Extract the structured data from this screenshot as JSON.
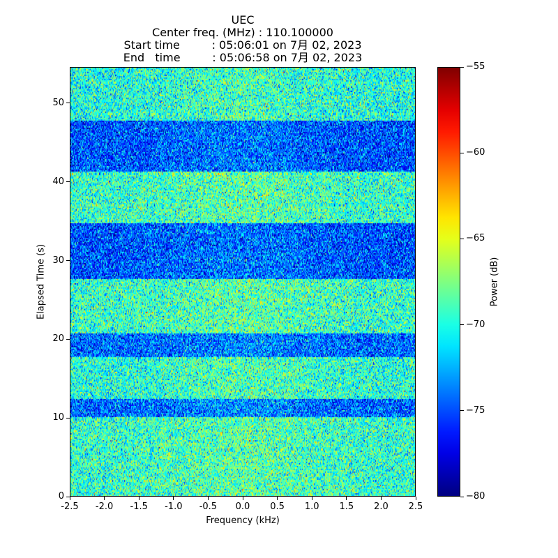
{
  "chart_data": {
    "type": "heatmap",
    "title_lines": [
      "UEC",
      "Center freq. (MHz) : 110.100000",
      "Start time         : 05:06:01 on 7月 02, 2023",
      "End   time         : 05:06:58 on 7月 02, 2023"
    ],
    "xlabel": "Frequency (kHz)",
    "ylabel": "Elapsed Time (s)",
    "xlim": [
      -2.5,
      2.5
    ],
    "ylim": [
      0,
      54.6
    ],
    "xticks": [
      -2.5,
      -2.0,
      -1.5,
      -1.0,
      -0.5,
      0.0,
      0.5,
      1.0,
      1.5,
      2.0,
      2.5
    ],
    "xtick_labels": [
      "-2.5",
      "-2.0",
      "-1.5",
      "-1.0",
      "-0.5",
      "0.0",
      "0.5",
      "1.0",
      "1.5",
      "2.0",
      "2.5"
    ],
    "yticks": [
      0,
      10,
      20,
      30,
      40,
      50
    ],
    "ytick_labels": [
      "0",
      "10",
      "20",
      "30",
      "40",
      "50"
    ],
    "colorbar": {
      "label": "Power (dB)",
      "range": [
        -80,
        -55
      ],
      "ticks": [
        -80,
        -75,
        -70,
        -65,
        -60,
        -55
      ],
      "tick_labels": [
        "−80",
        "−75",
        "−70",
        "−65",
        "−60",
        "−55"
      ],
      "colormap": "jet"
    },
    "time_bands": [
      {
        "t_start": 0.0,
        "t_end": 10.0,
        "mean_db": -69.5
      },
      {
        "t_start": 10.0,
        "t_end": 12.4,
        "mean_db": -74.5
      },
      {
        "t_start": 12.4,
        "t_end": 17.6,
        "mean_db": -69.8
      },
      {
        "t_start": 17.6,
        "t_end": 20.7,
        "mean_db": -74.5
      },
      {
        "t_start": 20.7,
        "t_end": 27.6,
        "mean_db": -69.5
      },
      {
        "t_start": 27.6,
        "t_end": 34.8,
        "mean_db": -75.0
      },
      {
        "t_start": 34.8,
        "t_end": 41.3,
        "mean_db": -69.5
      },
      {
        "t_start": 41.3,
        "t_end": 47.9,
        "mean_db": -75.0
      },
      {
        "t_start": 47.9,
        "t_end": 54.6,
        "mean_db": -70.0
      }
    ],
    "noise_std_db": 2.6,
    "center_boost_db": 1.0
  }
}
